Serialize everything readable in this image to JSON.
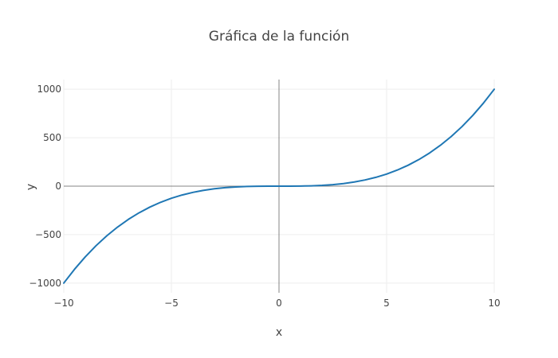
{
  "chart_data": {
    "type": "line",
    "title": "Gráfica de la función",
    "xlabel": "x",
    "ylabel": "y",
    "xlim": [
      -10,
      10
    ],
    "ylim": [
      -1100,
      1100
    ],
    "x_ticks": [
      -10,
      -5,
      0,
      5,
      10
    ],
    "x_tick_labels": [
      "−10",
      "−5",
      "0",
      "5",
      "10"
    ],
    "y_ticks": [
      -1000,
      -500,
      0,
      500,
      1000
    ],
    "y_tick_labels": [
      "−1000",
      "−500",
      "0",
      "500",
      "1000"
    ],
    "grid": true,
    "zero_lines": true,
    "line_color": "#1f77b4",
    "series": [
      {
        "x": [
          -10,
          -9.5,
          -9,
          -8.5,
          -8,
          -7.5,
          -7,
          -6.5,
          -6,
          -5.5,
          -5,
          -4.5,
          -4,
          -3.5,
          -3,
          -2.5,
          -2,
          -1.5,
          -1,
          -0.5,
          0,
          0.5,
          1,
          1.5,
          2,
          2.5,
          3,
          3.5,
          4,
          4.5,
          5,
          5.5,
          6,
          6.5,
          7,
          7.5,
          8,
          8.5,
          9,
          9.5,
          10
        ],
        "y": [
          -1000,
          -857.4,
          -729,
          -614.1,
          -512,
          -421.9,
          -343,
          -274.6,
          -216,
          -166.4,
          -125,
          -91.1,
          -64,
          -42.9,
          -27,
          -15.6,
          -8,
          -3.4,
          -1,
          -0.1,
          0,
          0.1,
          1,
          3.4,
          8,
          15.6,
          27,
          42.9,
          64,
          91.1,
          125,
          166.4,
          216,
          274.6,
          343,
          421.9,
          512,
          614.1,
          729,
          857.4,
          1000
        ]
      }
    ]
  }
}
